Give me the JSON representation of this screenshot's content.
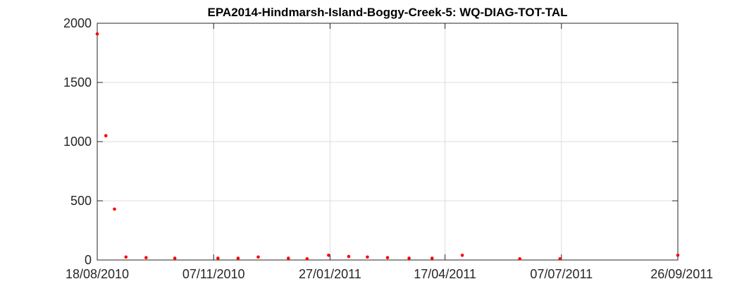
{
  "chart_data": {
    "type": "scatter",
    "title": "EPA2014-Hindmarsh-Island-Boggy-Creek-5: WQ-DIAG-TOT-TAL",
    "xlabel": "",
    "ylabel": "",
    "x_axis": {
      "type": "date",
      "range": [
        "18/08/2010",
        "26/09/2011"
      ],
      "ticks": [
        "18/08/2010",
        "07/11/2010",
        "27/01/2011",
        "17/04/2011",
        "07/07/2011",
        "26/09/2011"
      ]
    },
    "y_axis": {
      "range": [
        0,
        2000
      ],
      "ticks": [
        0,
        500,
        1000,
        1500,
        2000
      ]
    },
    "grid": true,
    "marker_color": "#ff0000",
    "points": [
      {
        "x": "18/08/2010",
        "y": 1910
      },
      {
        "x": "24/08/2010",
        "y": 1050
      },
      {
        "x": "30/08/2010",
        "y": 430
      },
      {
        "x": "07/09/2010",
        "y": 25
      },
      {
        "x": "21/09/2010",
        "y": 20
      },
      {
        "x": "11/10/2010",
        "y": 15
      },
      {
        "x": "10/11/2010",
        "y": 15
      },
      {
        "x": "24/11/2010",
        "y": 15
      },
      {
        "x": "08/12/2010",
        "y": 25
      },
      {
        "x": "29/12/2010",
        "y": 15
      },
      {
        "x": "11/01/2011",
        "y": 10
      },
      {
        "x": "26/01/2011",
        "y": 40
      },
      {
        "x": "09/02/2011",
        "y": 30
      },
      {
        "x": "22/02/2011",
        "y": 25
      },
      {
        "x": "08/03/2011",
        "y": 20
      },
      {
        "x": "23/03/2011",
        "y": 15
      },
      {
        "x": "08/04/2011",
        "y": 15
      },
      {
        "x": "29/04/2011",
        "y": 40
      },
      {
        "x": "08/06/2011",
        "y": 10
      },
      {
        "x": "06/07/2011",
        "y": 10
      },
      {
        "x": "26/09/2011",
        "y": 40
      }
    ]
  }
}
